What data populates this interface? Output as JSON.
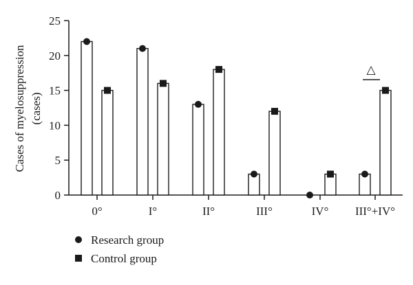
{
  "chart_data": {
    "type": "bar",
    "title": "",
    "xlabel": "",
    "ylabel_line1": "Cases of myelosuppression",
    "ylabel_line2": "(cases)",
    "ylim": [
      0,
      25
    ],
    "yticks": [
      0,
      5,
      10,
      15,
      20,
      25
    ],
    "categories": [
      "0°",
      "I°",
      "II°",
      "III°",
      "IV°",
      "III°+IV°"
    ],
    "series": [
      {
        "name": "Research group",
        "marker": "circle",
        "values": [
          22,
          21,
          13,
          3,
          0,
          3
        ]
      },
      {
        "name": "Control group",
        "marker": "square",
        "values": [
          15,
          16,
          18,
          12,
          3,
          15
        ]
      }
    ],
    "annotation": {
      "symbol": "△",
      "category": "III°+IV°"
    },
    "legend_position": "bottom-left",
    "grid": false,
    "colors": {
      "bar_fill": "#ffffff",
      "bar_stroke": "#1a1a1a",
      "marker": "#1a1a1a"
    }
  }
}
